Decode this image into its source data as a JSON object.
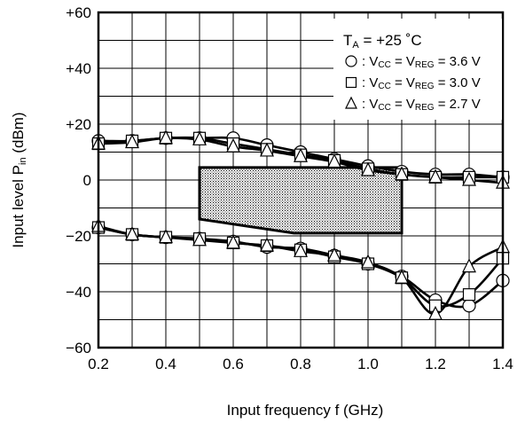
{
  "chart_data": {
    "type": "line",
    "xlabel": "Input frequency  f (GHz)",
    "ylabel": "Input level  P",
    "ylabel_sub": "in",
    "ylabel_unit": " (dBm)",
    "xlim": [
      0.2,
      1.4
    ],
    "ylim": [
      -60,
      60
    ],
    "x_ticks": [
      "0.2",
      "0.4",
      "0.6",
      "0.8",
      "1.0",
      "1.2",
      "1.4"
    ],
    "y_ticks": [
      "+60",
      "+40",
      "+20",
      "0",
      "−20",
      "−40",
      "−60"
    ],
    "y_tick_values": [
      60,
      40,
      20,
      0,
      -20,
      -40,
      -60
    ],
    "x_tick_values": [
      0.2,
      0.4,
      0.6,
      0.8,
      1.0,
      1.2,
      1.4
    ],
    "grid": true,
    "legend": {
      "placement": "top-right",
      "header": "T",
      "header_sub": "A",
      "header_rest": " = +25 ˚C",
      "entries": [
        {
          "marker": "circle",
          "text": ": V",
          "sub1": "CC",
          "mid": " = V",
          "sub2": "REG",
          "value": " = 3.6 V"
        },
        {
          "marker": "square",
          "text": ": V",
          "sub1": "CC",
          "mid": " = V",
          "sub2": "REG",
          "value": " = 3.0 V"
        },
        {
          "marker": "triangle",
          "text": ": V",
          "sub1": "CC",
          "mid": " = V",
          "sub2": "REG",
          "value": " = 2.7 V"
        }
      ]
    },
    "x": [
      0.2,
      0.3,
      0.4,
      0.5,
      0.6,
      0.7,
      0.8,
      0.9,
      1.0,
      1.1,
      1.2,
      1.3,
      1.4
    ],
    "series": [
      {
        "group": "upper",
        "marker": "circle",
        "values": [
          14,
          14,
          15,
          15,
          15,
          12.5,
          10,
          7.5,
          5,
          3,
          2,
          2,
          1
        ]
      },
      {
        "group": "upper",
        "marker": "square",
        "values": [
          13,
          14,
          15,
          15,
          13,
          11,
          9,
          7,
          4,
          2,
          1,
          1,
          1
        ]
      },
      {
        "group": "upper",
        "marker": "triangle",
        "values": [
          13,
          13.5,
          15,
          14.5,
          12,
          10.5,
          8.5,
          6.5,
          3.5,
          2,
          1,
          0,
          -1
        ]
      },
      {
        "group": "lower",
        "marker": "circle",
        "values": [
          -17,
          -19.5,
          -20.5,
          -21,
          -22,
          -24,
          -24.5,
          -27,
          -30,
          -34.5,
          -43,
          -45,
          -36
        ]
      },
      {
        "group": "lower",
        "marker": "square",
        "values": [
          -17,
          -19.5,
          -20.5,
          -21,
          -22.5,
          -23.5,
          -25,
          -27.5,
          -30,
          -35,
          -45,
          -41,
          -28
        ]
      },
      {
        "group": "lower",
        "marker": "triangle",
        "values": [
          -16.5,
          -19.5,
          -20.5,
          -21.5,
          -22.5,
          -23.5,
          -25.5,
          -27,
          -29.5,
          -35,
          -48,
          -31,
          -24
        ]
      }
    ],
    "region": {
      "fill": "dotted",
      "points": [
        [
          0.5,
          4.5
        ],
        [
          1.1,
          4.5
        ],
        [
          1.1,
          -19
        ],
        [
          0.78,
          -19
        ],
        [
          0.5,
          -14
        ]
      ]
    }
  }
}
